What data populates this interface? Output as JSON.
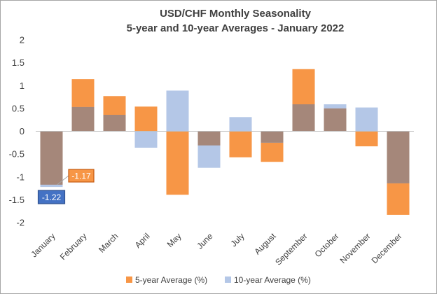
{
  "chart_data": {
    "type": "bar",
    "title": "USD/CHF Monthly Seasonality",
    "subtitle": "5-year and 10-year Averages - January 2022",
    "categories": [
      "January",
      "February",
      "March",
      "April",
      "May",
      "June",
      "July",
      "August",
      "September",
      "October",
      "November",
      "December"
    ],
    "series": [
      {
        "name": "5-year Average (%)",
        "color": "#f79646",
        "values": [
          -1.17,
          1.14,
          0.77,
          0.54,
          -1.39,
          -0.31,
          -0.57,
          -0.67,
          1.36,
          0.5,
          -0.33,
          -1.83
        ]
      },
      {
        "name": "10-year Average (%)",
        "color": "#b4c7e7",
        "values": [
          -1.22,
          0.53,
          0.36,
          -0.36,
          0.89,
          -0.8,
          0.31,
          -0.25,
          0.59,
          0.59,
          0.52,
          -1.14
        ]
      }
    ],
    "overlap_color": "#a5877a",
    "ylim": [
      -2,
      2
    ],
    "yticks": [
      2,
      1.5,
      1,
      0.5,
      0,
      -0.5,
      -1,
      -1.5,
      -2
    ],
    "xlabel": "",
    "ylabel": "",
    "grid": false,
    "legend": "bottom",
    "annotations": [
      {
        "text": "-1.17",
        "series": "5-year Average (%)",
        "category": "January",
        "bg": "#f79646",
        "border": "#c55a11"
      },
      {
        "text": "-1.22",
        "series": "10-year Average (%)",
        "category": "January",
        "bg": "#4472c4",
        "border": "#2f528f"
      }
    ]
  }
}
